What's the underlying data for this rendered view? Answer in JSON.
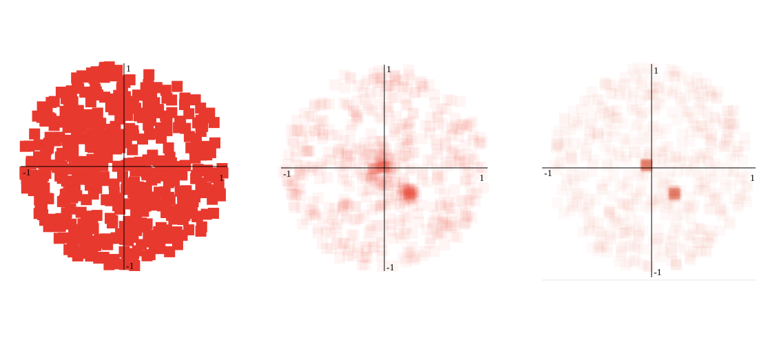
{
  "accent_color": "#e8392f",
  "chart_data": [
    {
      "type": "scatter",
      "marker": "square",
      "opacity": 1.0,
      "color": "#e8392f",
      "xlim": [
        -1,
        1
      ],
      "ylim": [
        -1,
        1
      ],
      "tick_labels": {
        "x_min": "-1",
        "x_max": "1",
        "y_min": "-1",
        "y_max": "1"
      },
      "n_points": 520,
      "seed": 11,
      "cluster_points": [],
      "grid": false
    },
    {
      "type": "scatter",
      "marker": "square",
      "opacity": 0.05,
      "color": "#e8392f",
      "xlim": [
        -1,
        1
      ],
      "ylim": [
        -1,
        1
      ],
      "tick_labels": {
        "x_min": "-1",
        "x_max": "1",
        "y_min": "-1",
        "y_max": "1"
      },
      "n_points": 520,
      "seed": 23,
      "cluster_points": [
        {
          "x": 0.0,
          "y": 0.0,
          "spread": 0.18,
          "count": 60
        },
        {
          "x": 0.24,
          "y": -0.25,
          "spread": 0.08,
          "count": 40
        }
      ],
      "grid": false
    },
    {
      "type": "scatter",
      "marker": "square",
      "opacity": 0.03,
      "color": "#e8392f",
      "xlim": [
        -1,
        1
      ],
      "ylim": [
        -1,
        1
      ],
      "tick_labels": {
        "x_min": "-1",
        "x_max": "1",
        "y_min": "-1",
        "y_max": "1"
      },
      "n_points": 520,
      "seed": 37,
      "cluster_points": [
        {
          "x": -0.05,
          "y": 0.02,
          "spread": 0.03,
          "count": 30
        },
        {
          "x": 0.22,
          "y": -0.25,
          "spread": 0.04,
          "count": 30
        }
      ],
      "grid": false
    }
  ]
}
